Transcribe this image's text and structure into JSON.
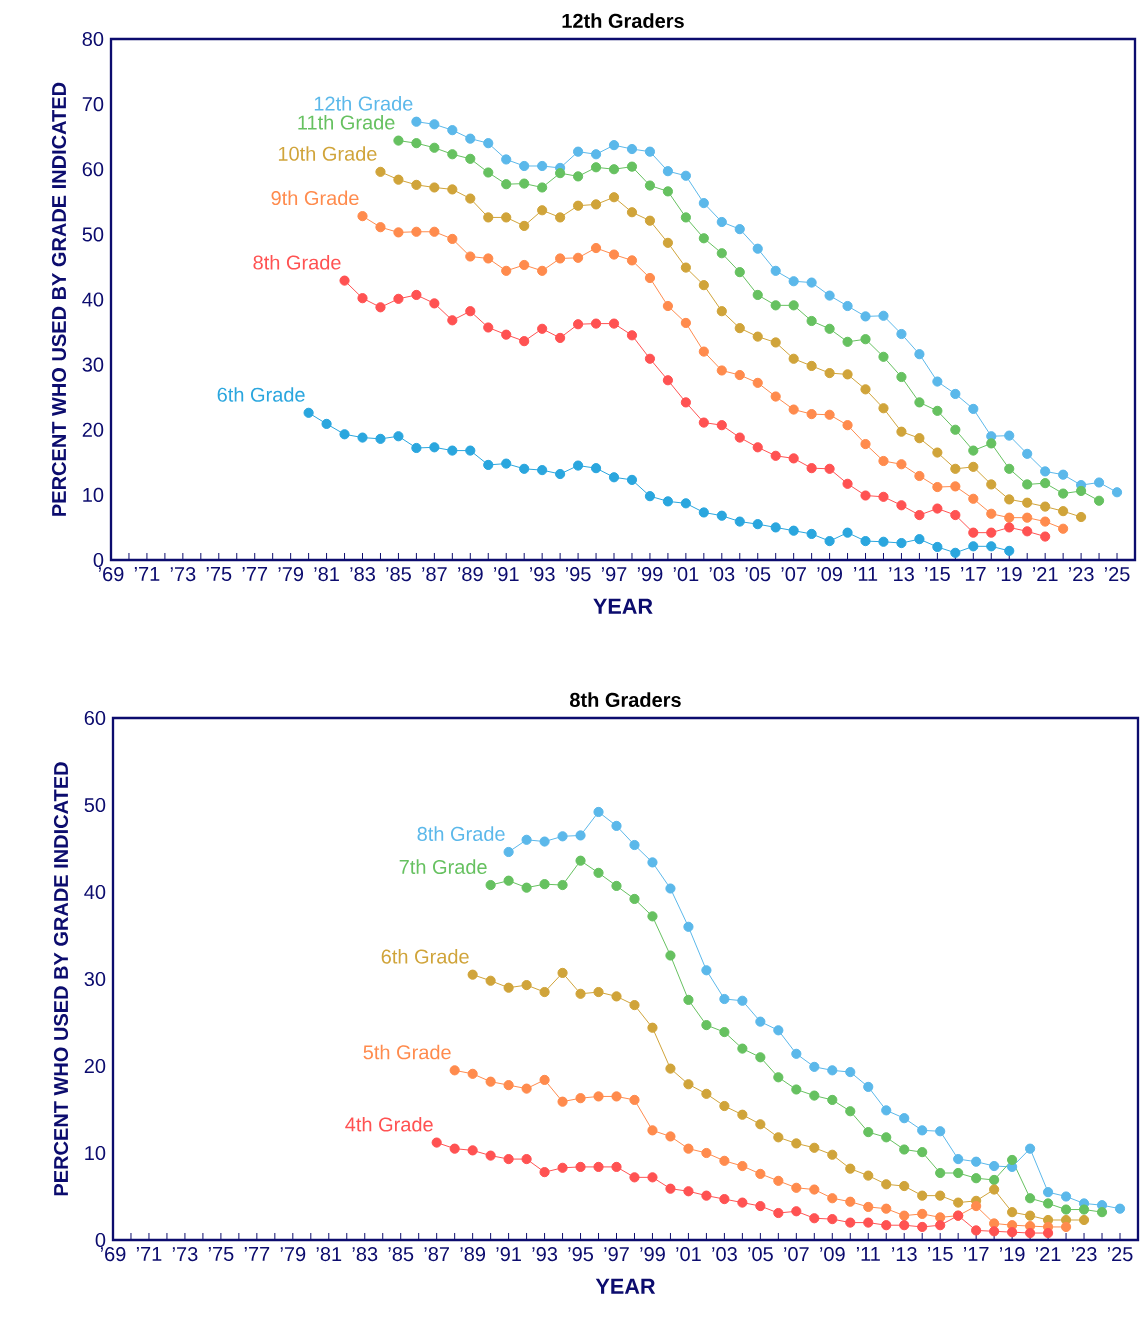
{
  "chart_data": [
    {
      "type": "line",
      "title": "12th Graders",
      "xlabel": "YEAR",
      "ylabel": "PERCENT WHO USED BY GRADE INDICATED",
      "xlim": [
        1969,
        2026
      ],
      "ylim": [
        0,
        80
      ],
      "yticks": [
        0,
        10,
        20,
        30,
        40,
        50,
        60,
        70,
        80
      ],
      "marker": "circle",
      "grid": false,
      "legend": false,
      "xticks": [
        {
          "value": 1969,
          "label": "’69"
        },
        {
          "value": 1971,
          "label": "’71"
        },
        {
          "value": 1973,
          "label": "’73"
        },
        {
          "value": 1975,
          "label": "’75"
        },
        {
          "value": 1977,
          "label": "’77"
        },
        {
          "value": 1979,
          "label": "’79"
        },
        {
          "value": 1981,
          "label": "’81"
        },
        {
          "value": 1983,
          "label": "’83"
        },
        {
          "value": 1985,
          "label": "’85"
        },
        {
          "value": 1987,
          "label": "’87"
        },
        {
          "value": 1989,
          "label": "’89"
        },
        {
          "value": 1991,
          "label": "’91"
        },
        {
          "value": 1993,
          "label": "’93"
        },
        {
          "value": 1995,
          "label": "’95"
        },
        {
          "value": 1997,
          "label": "’97"
        },
        {
          "value": 1999,
          "label": "’99"
        },
        {
          "value": 2001,
          "label": "’01"
        },
        {
          "value": 2003,
          "label": "’03"
        },
        {
          "value": 2005,
          "label": "’05"
        },
        {
          "value": 2007,
          "label": "’07"
        },
        {
          "value": 2009,
          "label": "’09"
        },
        {
          "value": 2011,
          "label": "’11"
        },
        {
          "value": 2013,
          "label": "’13"
        },
        {
          "value": 2015,
          "label": "’15"
        },
        {
          "value": 2017,
          "label": "’17"
        },
        {
          "value": 2019,
          "label": "’19"
        },
        {
          "value": 2021,
          "label": "’21"
        },
        {
          "value": 2023,
          "label": "’23"
        },
        {
          "value": 2025,
          "label": "’25"
        }
      ],
      "series": [
        {
          "name": "12th Grade",
          "color": "#5bb8ea",
          "x": [
            1986,
            1987,
            1988,
            1989,
            1990,
            1991,
            1992,
            1993,
            1994,
            1995,
            1996,
            1997,
            1998,
            1999,
            2000,
            2001,
            2002,
            2003,
            2004,
            2005,
            2006,
            2007,
            2008,
            2009,
            2010,
            2011,
            2012,
            2013,
            2014,
            2015,
            2016,
            2017,
            2018,
            2019,
            2020,
            2021,
            2022,
            2023,
            2024,
            2025
          ],
          "values": [
            67.3,
            66.9,
            66.0,
            64.7,
            64.0,
            61.5,
            60.5,
            60.5,
            60.2,
            62.7,
            62.3,
            63.7,
            63.1,
            62.7,
            59.7,
            59.0,
            54.8,
            51.9,
            50.8,
            47.8,
            44.4,
            42.8,
            42.6,
            40.6,
            39.0,
            37.4,
            37.5,
            34.7,
            31.6,
            27.4,
            25.5,
            23.2,
            19.0,
            19.1,
            16.3,
            13.6,
            13.1,
            11.5,
            11.9,
            10.4
          ]
        },
        {
          "name": "11th Grade",
          "color": "#66c160",
          "x": [
            1985,
            1986,
            1987,
            1988,
            1989,
            1990,
            1991,
            1992,
            1993,
            1994,
            1995,
            1996,
            1997,
            1998,
            1999,
            2000,
            2001,
            2002,
            2003,
            2004,
            2005,
            2006,
            2007,
            2008,
            2009,
            2010,
            2011,
            2012,
            2013,
            2014,
            2015,
            2016,
            2017,
            2018,
            2019,
            2020,
            2021,
            2022,
            2023,
            2024
          ],
          "values": [
            64.4,
            64.0,
            63.3,
            62.3,
            61.6,
            59.5,
            57.7,
            57.8,
            57.2,
            59.4,
            58.9,
            60.3,
            60.0,
            60.4,
            57.5,
            56.6,
            52.6,
            49.4,
            47.1,
            44.2,
            40.7,
            39.1,
            39.1,
            36.7,
            35.5,
            33.5,
            33.9,
            31.2,
            28.1,
            24.2,
            22.9,
            20.0,
            16.8,
            17.9,
            14.0,
            11.6,
            11.8,
            10.2,
            10.6,
            9.1
          ]
        },
        {
          "name": "10th Grade",
          "color": "#d0a43a",
          "x": [
            1984,
            1985,
            1986,
            1987,
            1988,
            1989,
            1990,
            1991,
            1992,
            1993,
            1994,
            1995,
            1996,
            1997,
            1998,
            1999,
            2000,
            2001,
            2002,
            2003,
            2004,
            2005,
            2006,
            2007,
            2008,
            2009,
            2010,
            2011,
            2012,
            2013,
            2014,
            2015,
            2016,
            2017,
            2018,
            2019,
            2020,
            2021,
            2022,
            2023
          ],
          "values": [
            59.6,
            58.4,
            57.6,
            57.2,
            56.9,
            55.5,
            52.6,
            52.6,
            51.3,
            53.7,
            52.6,
            54.4,
            54.6,
            55.7,
            53.4,
            52.1,
            48.7,
            44.9,
            42.2,
            38.2,
            35.6,
            34.3,
            33.4,
            30.9,
            29.8,
            28.7,
            28.5,
            26.2,
            23.3,
            19.7,
            18.7,
            16.5,
            14.0,
            14.3,
            11.6,
            9.3,
            8.8,
            8.2,
            7.5,
            6.6
          ]
        },
        {
          "name": "9th Grade",
          "color": "#ff8b4d",
          "x": [
            1983,
            1984,
            1985,
            1986,
            1987,
            1988,
            1989,
            1990,
            1991,
            1992,
            1993,
            1994,
            1995,
            1996,
            1997,
            1998,
            1999,
            2000,
            2001,
            2002,
            2003,
            2004,
            2005,
            2006,
            2007,
            2008,
            2009,
            2010,
            2011,
            2012,
            2013,
            2014,
            2015,
            2016,
            2017,
            2018,
            2019,
            2020,
            2021,
            2022
          ],
          "values": [
            52.8,
            51.1,
            50.3,
            50.4,
            50.4,
            49.3,
            46.6,
            46.3,
            44.4,
            45.3,
            44.4,
            46.3,
            46.4,
            47.9,
            46.9,
            46.0,
            43.3,
            39.0,
            36.4,
            32.0,
            29.1,
            28.4,
            27.2,
            25.1,
            23.1,
            22.4,
            22.3,
            20.7,
            17.8,
            15.2,
            14.7,
            12.9,
            11.2,
            11.3,
            9.4,
            7.1,
            6.5,
            6.5,
            5.9,
            4.8
          ]
        },
        {
          "name": "8th Grade",
          "color": "#ff5252",
          "x": [
            1982,
            1983,
            1984,
            1985,
            1986,
            1987,
            1988,
            1989,
            1990,
            1991,
            1992,
            1993,
            1994,
            1995,
            1996,
            1997,
            1998,
            1999,
            2000,
            2001,
            2002,
            2003,
            2004,
            2005,
            2006,
            2007,
            2008,
            2009,
            2010,
            2011,
            2012,
            2013,
            2014,
            2015,
            2016,
            2017,
            2018,
            2019,
            2020,
            2021
          ],
          "values": [
            42.9,
            40.2,
            38.8,
            40.1,
            40.7,
            39.4,
            36.8,
            38.2,
            35.7,
            34.6,
            33.6,
            35.5,
            34.1,
            36.2,
            36.3,
            36.3,
            34.5,
            30.9,
            27.6,
            24.2,
            21.1,
            20.7,
            18.8,
            17.3,
            16.0,
            15.6,
            14.1,
            14.0,
            11.7,
            9.9,
            9.7,
            8.4,
            6.9,
            7.9,
            6.9,
            4.2,
            4.2,
            5.0,
            4.4,
            3.6
          ]
        },
        {
          "name": "6th Grade",
          "color": "#2aa6de",
          "x": [
            1980,
            1981,
            1982,
            1983,
            1984,
            1985,
            1986,
            1987,
            1988,
            1989,
            1990,
            1991,
            1992,
            1993,
            1994,
            1995,
            1996,
            1997,
            1998,
            1999,
            2000,
            2001,
            2002,
            2003,
            2004,
            2005,
            2006,
            2007,
            2008,
            2009,
            2010,
            2011,
            2012,
            2013,
            2014,
            2015,
            2016,
            2017,
            2018,
            2019
          ],
          "values": [
            22.6,
            20.9,
            19.3,
            18.8,
            18.6,
            19.0,
            17.2,
            17.3,
            16.8,
            16.8,
            14.6,
            14.8,
            14.0,
            13.8,
            13.2,
            14.5,
            14.1,
            12.7,
            12.3,
            9.8,
            9.0,
            8.7,
            7.3,
            6.8,
            5.9,
            5.5,
            5.0,
            4.5,
            4.0,
            2.9,
            4.2,
            2.9,
            2.8,
            2.6,
            3.2,
            2.0,
            1.1,
            2.1,
            2.1,
            1.4
          ]
        }
      ]
    },
    {
      "type": "line",
      "title": "8th Graders",
      "xlabel": "YEAR",
      "ylabel": "PERCENT WHO USED BY GRADE INDICATED",
      "xlim": [
        1969,
        2026
      ],
      "ylim": [
        0,
        60
      ],
      "yticks": [
        0,
        10,
        20,
        30,
        40,
        50,
        60
      ],
      "marker": "circle",
      "grid": false,
      "legend": false,
      "xticks": [
        {
          "value": 1969,
          "label": "’69"
        },
        {
          "value": 1971,
          "label": "’71"
        },
        {
          "value": 1973,
          "label": "’73"
        },
        {
          "value": 1975,
          "label": "’75"
        },
        {
          "value": 1977,
          "label": "’77"
        },
        {
          "value": 1979,
          "label": "’79"
        },
        {
          "value": 1981,
          "label": "’81"
        },
        {
          "value": 1983,
          "label": "’83"
        },
        {
          "value": 1985,
          "label": "’85"
        },
        {
          "value": 1987,
          "label": "’87"
        },
        {
          "value": 1989,
          "label": "’89"
        },
        {
          "value": 1991,
          "label": "’91"
        },
        {
          "value": 1993,
          "label": "’93"
        },
        {
          "value": 1995,
          "label": "’95"
        },
        {
          "value": 1997,
          "label": "’97"
        },
        {
          "value": 1999,
          "label": "’99"
        },
        {
          "value": 2001,
          "label": "’01"
        },
        {
          "value": 2003,
          "label": "’03"
        },
        {
          "value": 2005,
          "label": "’05"
        },
        {
          "value": 2007,
          "label": "’07"
        },
        {
          "value": 2009,
          "label": "’09"
        },
        {
          "value": 2011,
          "label": "’11"
        },
        {
          "value": 2013,
          "label": "’13"
        },
        {
          "value": 2015,
          "label": "’15"
        },
        {
          "value": 2017,
          "label": "’17"
        },
        {
          "value": 2019,
          "label": "’19"
        },
        {
          "value": 2021,
          "label": "’21"
        },
        {
          "value": 2023,
          "label": "’23"
        },
        {
          "value": 2025,
          "label": "’25"
        }
      ],
      "series": [
        {
          "name": "8th Grade",
          "color": "#5bb8ea",
          "x": [
            1991,
            1992,
            1993,
            1994,
            1995,
            1996,
            1997,
            1998,
            1999,
            2000,
            2001,
            2002,
            2003,
            2004,
            2005,
            2006,
            2007,
            2008,
            2009,
            2010,
            2011,
            2012,
            2013,
            2014,
            2015,
            2016,
            2017,
            2018,
            2019,
            2020,
            2021,
            2022,
            2023,
            2024,
            2025
          ],
          "values": [
            44.6,
            46.0,
            45.8,
            46.4,
            46.5,
            49.2,
            47.6,
            45.4,
            43.4,
            40.4,
            36.0,
            31.0,
            27.7,
            27.5,
            25.1,
            24.1,
            21.4,
            19.9,
            19.5,
            19.3,
            17.6,
            14.9,
            14.0,
            12.6,
            12.5,
            9.3,
            9.0,
            8.5,
            8.4,
            10.5,
            5.5,
            5.0,
            4.2,
            4.0,
            3.6
          ]
        },
        {
          "name": "7th Grade",
          "color": "#66c160",
          "x": [
            1990,
            1991,
            1992,
            1993,
            1994,
            1995,
            1996,
            1997,
            1998,
            1999,
            2000,
            2001,
            2002,
            2003,
            2004,
            2005,
            2006,
            2007,
            2008,
            2009,
            2010,
            2011,
            2012,
            2013,
            2014,
            2015,
            2016,
            2017,
            2018,
            2019,
            2020,
            2021,
            2022,
            2023,
            2024
          ],
          "values": [
            40.8,
            41.3,
            40.5,
            40.9,
            40.8,
            43.6,
            42.2,
            40.7,
            39.2,
            37.2,
            32.7,
            27.6,
            24.7,
            23.9,
            22.0,
            21.0,
            18.7,
            17.3,
            16.6,
            16.1,
            14.8,
            12.4,
            11.8,
            10.4,
            10.1,
            7.7,
            7.7,
            7.1,
            6.9,
            9.2,
            4.8,
            4.2,
            3.5,
            3.5,
            3.2
          ]
        },
        {
          "name": "6th Grade",
          "color": "#d0a43a",
          "x": [
            1989,
            1990,
            1991,
            1992,
            1993,
            1994,
            1995,
            1996,
            1997,
            1998,
            1999,
            2000,
            2001,
            2002,
            2003,
            2004,
            2005,
            2006,
            2007,
            2008,
            2009,
            2010,
            2011,
            2012,
            2013,
            2014,
            2015,
            2016,
            2017,
            2018,
            2019,
            2020,
            2021,
            2022,
            2023
          ],
          "values": [
            30.5,
            29.8,
            29.0,
            29.3,
            28.5,
            30.7,
            28.3,
            28.5,
            28.0,
            27.0,
            24.4,
            19.7,
            17.9,
            16.8,
            15.4,
            14.4,
            13.3,
            11.8,
            11.1,
            10.6,
            9.8,
            8.2,
            7.4,
            6.4,
            6.2,
            5.1,
            5.1,
            4.3,
            4.5,
            5.8,
            3.2,
            2.8,
            2.3,
            2.3,
            2.3
          ]
        },
        {
          "name": "5th Grade",
          "color": "#ff8b4d",
          "x": [
            1988,
            1989,
            1990,
            1991,
            1992,
            1993,
            1994,
            1995,
            1996,
            1997,
            1998,
            1999,
            2000,
            2001,
            2002,
            2003,
            2004,
            2005,
            2006,
            2007,
            2008,
            2009,
            2010,
            2011,
            2012,
            2013,
            2014,
            2015,
            2016,
            2017,
            2018,
            2019,
            2020,
            2021,
            2022
          ],
          "values": [
            19.5,
            19.1,
            18.2,
            17.8,
            17.4,
            18.4,
            15.9,
            16.3,
            16.5,
            16.5,
            16.1,
            12.6,
            11.9,
            10.5,
            10.0,
            9.1,
            8.5,
            7.6,
            6.8,
            6.0,
            5.8,
            4.8,
            4.4,
            3.8,
            3.6,
            2.8,
            3.0,
            2.6,
            2.8,
            3.9,
            1.9,
            1.7,
            1.6,
            1.5,
            1.5
          ]
        },
        {
          "name": "4th Grade",
          "color": "#ff5252",
          "x": [
            1987,
            1988,
            1989,
            1990,
            1991,
            1992,
            1993,
            1994,
            1995,
            1996,
            1997,
            1998,
            1999,
            2000,
            2001,
            2002,
            2003,
            2004,
            2005,
            2006,
            2007,
            2008,
            2009,
            2010,
            2011,
            2012,
            2013,
            2014,
            2015,
            2016,
            2017,
            2018,
            2019,
            2020,
            2021
          ],
          "values": [
            11.2,
            10.5,
            10.3,
            9.7,
            9.3,
            9.3,
            7.8,
            8.3,
            8.4,
            8.4,
            8.4,
            7.2,
            7.2,
            5.9,
            5.6,
            5.1,
            4.7,
            4.3,
            3.9,
            3.1,
            3.3,
            2.5,
            2.4,
            2.0,
            2.0,
            1.7,
            1.7,
            1.5,
            1.7,
            2.8,
            1.1,
            1.0,
            0.9,
            0.8,
            0.8
          ]
        }
      ]
    }
  ]
}
